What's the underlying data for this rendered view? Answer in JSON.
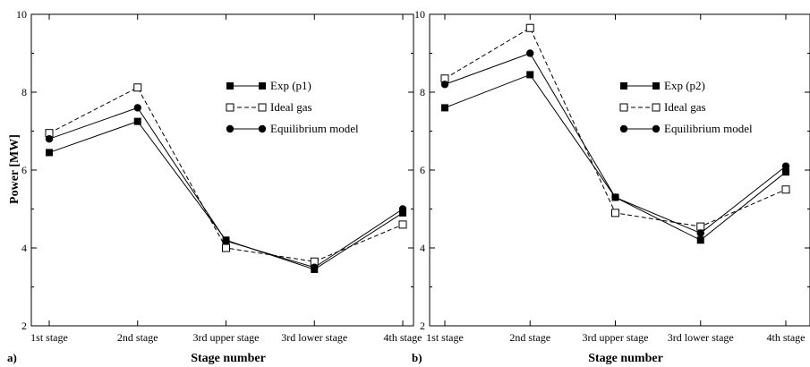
{
  "figure": {
    "ylabel": "Power [MW]",
    "panels": [
      {
        "label": "a)",
        "xlabel": "Stage number"
      },
      {
        "label": "b)",
        "xlabel": "Stage number"
      }
    ]
  },
  "chart_data": [
    {
      "type": "line",
      "categories": [
        "1st stage",
        "2nd stage",
        "3rd upper stage",
        "3rd lower stage",
        "4th stage"
      ],
      "xlabel": "Stage number",
      "ylabel": "Power [MW]",
      "ylim": [
        2,
        10
      ],
      "yticks": [
        2,
        4,
        6,
        8,
        10
      ],
      "grid": false,
      "legend_position": "upper-right",
      "series": [
        {
          "name": "Exp (p1)",
          "values": [
            6.45,
            7.25,
            4.2,
            3.45,
            4.9
          ],
          "marker": "filled-square",
          "line": "solid"
        },
        {
          "name": "Ideal gas",
          "values": [
            6.95,
            8.12,
            4.0,
            3.65,
            4.6
          ],
          "marker": "open-square",
          "line": "dashed"
        },
        {
          "name": "Equilibrium model",
          "values": [
            6.8,
            7.6,
            4.18,
            3.5,
            5.0
          ],
          "marker": "filled-circle",
          "line": "solid"
        }
      ]
    },
    {
      "type": "line",
      "categories": [
        "1st stage",
        "2nd stage",
        "3rd upper stage",
        "3rd lower stage",
        "4th stage"
      ],
      "xlabel": "Stage number",
      "ylabel": "",
      "ylim": [
        2,
        10
      ],
      "yticks": [
        2,
        4,
        6,
        8,
        10
      ],
      "grid": false,
      "legend_position": "upper-right",
      "series": [
        {
          "name": "Exp (p2)",
          "values": [
            7.6,
            8.45,
            5.3,
            4.2,
            5.95
          ],
          "marker": "filled-square",
          "line": "solid"
        },
        {
          "name": "Ideal gas",
          "values": [
            8.35,
            9.65,
            4.9,
            4.55,
            5.5
          ],
          "marker": "open-square",
          "line": "dashed"
        },
        {
          "name": "Equilibrium model",
          "values": [
            8.2,
            9.0,
            5.3,
            4.38,
            6.1
          ],
          "marker": "filled-circle",
          "line": "solid"
        }
      ]
    }
  ]
}
